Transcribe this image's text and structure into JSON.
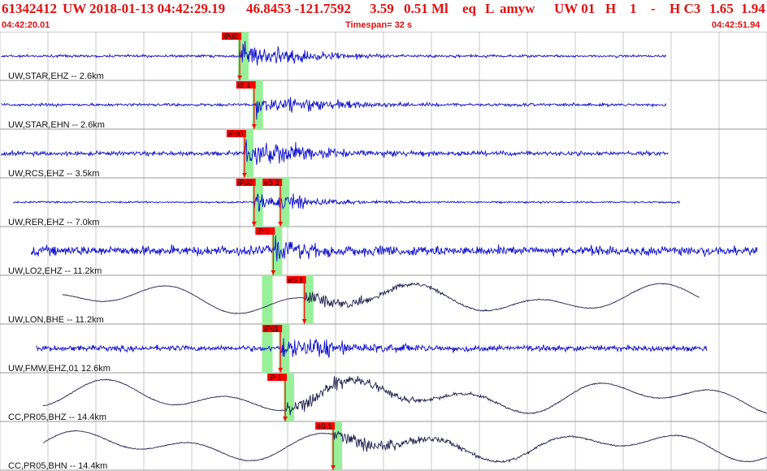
{
  "header": {
    "event_id": "61342412",
    "network": "UW",
    "datetime": "2018-01-13 04:42:29.19",
    "latlon": "46.8453 -121.7592",
    "depth": "3.59",
    "magnitude": "0.51 Ml",
    "type": "eq",
    "flag": "L",
    "author": "amyw",
    "solution": "UW 01",
    "h1": "H",
    "num": "1",
    "dash": "-",
    "quality": "H C3",
    "v1": "1.65",
    "v2": "1.94"
  },
  "subheader": {
    "start_time": "04:42:20.01",
    "timespan": "Timespan=  32 s",
    "end_time": "04:42:51.94"
  },
  "colors": {
    "header_text": "#e01010",
    "trace_blue": "#1010cc",
    "trace_dark": "#202050",
    "pick_red": "#ff0000",
    "highlight_green": "#98f098",
    "grid": "#c8c8c8"
  },
  "channels": [
    {
      "label": "UW,STAR,EHZ -- 2.6km",
      "style": "blue",
      "picks": [
        {
          "text": "iPd0",
          "time": 10.0
        }
      ]
    },
    {
      "label": "UW,STAR,EHN -- 2.6km",
      "style": "blue",
      "picks": [
        {
          "text": "iS 1",
          "time": 10.6
        }
      ]
    },
    {
      "label": "UW,RCS,EHZ -- 3.5km",
      "style": "blue",
      "picks": [
        {
          "text": "iPd0",
          "time": 10.2
        }
      ]
    },
    {
      "label": "UW,RER,EHZ -- 7.0km",
      "style": "blue",
      "picks": [
        {
          "text": "iPd0",
          "time": 10.6
        },
        {
          "text": "eS 2",
          "time": 11.7
        }
      ]
    },
    {
      "label": "UW,LO2,EHZ -- 11.2km",
      "style": "blue",
      "picks": [
        {
          "text": "iP 1",
          "time": 11.4
        }
      ]
    },
    {
      "label": "UW,LON,BHE -- 11.2km",
      "style": "dark",
      "picks": [
        {
          "text": "eS 1",
          "time": 12.7
        }
      ]
    },
    {
      "label": "UW,FMW,EHZ,01 12.6km",
      "style": "blue",
      "picks": [
        {
          "text": "iPd1",
          "time": 11.7
        }
      ]
    },
    {
      "label": "CC,PR05,BHZ -- 14.4km",
      "style": "dark",
      "picks": [
        {
          "text": "iP 1",
          "time": 11.9
        }
      ]
    },
    {
      "label": "CC,PR05,BHN -- 14.4km",
      "style": "dark",
      "picks": [
        {
          "text": "eS 1",
          "time": 13.9
        }
      ]
    }
  ]
}
